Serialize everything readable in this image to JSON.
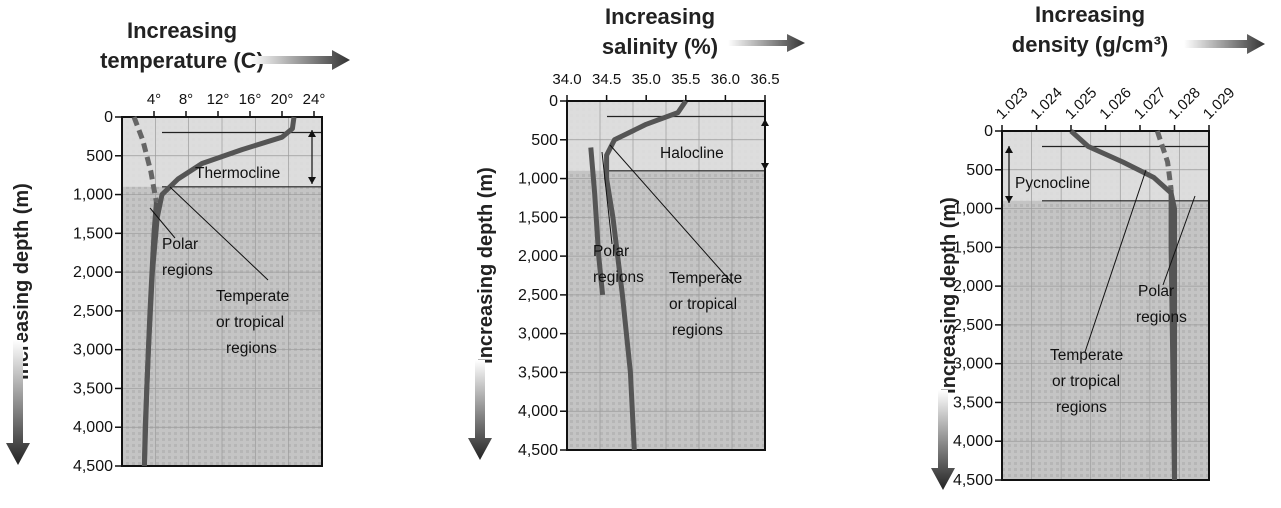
{
  "chart_data": [
    {
      "type": "line",
      "title_lines": [
        "Increasing",
        "temperature (C)"
      ],
      "ylabel": "Increasing depth (m)",
      "x_ticks": [
        "4°",
        "8°",
        "12°",
        "16°",
        "20°",
        "24°"
      ],
      "x_tick_values": [
        4,
        8,
        12,
        16,
        20,
        24
      ],
      "xlim": [
        0,
        25
      ],
      "y_ticks": [
        "0",
        "500",
        "1,000",
        "1,500",
        "2,000",
        "2,500",
        "3,000",
        "3,500",
        "4,000",
        "4,500"
      ],
      "y_tick_values": [
        0,
        500,
        1000,
        1500,
        2000,
        2500,
        3000,
        3500,
        4000,
        4500
      ],
      "ylim": [
        0,
        4500
      ],
      "layer_label": "Thermocline",
      "layer_range": [
        200,
        900
      ],
      "series": [
        {
          "key": "polar",
          "dashed_until": 1100,
          "points": [
            [
              1.5,
              0
            ],
            [
              2.6,
              300
            ],
            [
              3.6,
              700
            ],
            [
              4.3,
              1100
            ],
            [
              4.0,
              1500
            ],
            [
              3.5,
              2500
            ],
            [
              3.1,
              3500
            ],
            [
              2.8,
              4500
            ]
          ]
        },
        {
          "key": "temperate",
          "dashed_until": 0,
          "points": [
            [
              21.5,
              0
            ],
            [
              21.3,
              150
            ],
            [
              20.0,
              260
            ],
            [
              15.0,
              420
            ],
            [
              10.0,
              600
            ],
            [
              7.0,
              800
            ],
            [
              5.0,
              1000
            ],
            [
              4.4,
              1300
            ],
            [
              3.8,
              2000
            ],
            [
              3.3,
              3000
            ],
            [
              2.9,
              4000
            ],
            [
              2.8,
              4500
            ]
          ]
        }
      ],
      "labels": {
        "polar": "Polar regions",
        "temperate": "Temperate or tropical regions"
      }
    },
    {
      "type": "line",
      "title_lines": [
        "Increasing",
        "salinity (%)"
      ],
      "ylabel": "Increasing depth (m)",
      "x_ticks": [
        "34.0",
        "34.5",
        "35.0",
        "35.5",
        "36.0",
        "36.5"
      ],
      "x_tick_values": [
        34.0,
        34.5,
        35.0,
        35.5,
        36.0,
        36.5
      ],
      "xlim": [
        34.0,
        36.5
      ],
      "y_ticks": [
        "0",
        "500",
        "1,000",
        "1,500",
        "2,000",
        "2,500",
        "3,000",
        "3,500",
        "4,000",
        "4,500"
      ],
      "y_tick_values": [
        0,
        500,
        1000,
        1500,
        2000,
        2500,
        3000,
        3500,
        4000,
        4500
      ],
      "ylim": [
        0,
        4500
      ],
      "layer_label": "Halocline",
      "layer_range": [
        200,
        900
      ],
      "series": [
        {
          "key": "polar",
          "dashed_until": 500,
          "points": [
            [
              34.1,
              200
            ],
            [
              34.3,
              600
            ],
            [
              34.35,
              1200
            ],
            [
              34.4,
              2000
            ],
            [
              34.45,
              2500
            ]
          ]
        },
        {
          "key": "temperate",
          "dashed_until": 0,
          "points": [
            [
              35.5,
              0
            ],
            [
              35.4,
              150
            ],
            [
              35.0,
              300
            ],
            [
              34.6,
              500
            ],
            [
              34.5,
              700
            ],
            [
              34.5,
              1000
            ],
            [
              34.58,
              1500
            ],
            [
              34.7,
              2500
            ],
            [
              34.8,
              3500
            ],
            [
              34.85,
              4500
            ]
          ]
        }
      ],
      "labels": {
        "polar": "Polar regions",
        "temperate": "Temperate or tropical regions"
      }
    },
    {
      "type": "line",
      "title_lines": [
        "Increasing",
        "density (g/cm³)"
      ],
      "ylabel": "Increasing depth (m)",
      "x_ticks": [
        "1.023",
        "1.024",
        "1.025",
        "1.026",
        "1.027",
        "1.028",
        "1.029"
      ],
      "x_tick_values": [
        1.023,
        1.024,
        1.025,
        1.026,
        1.027,
        1.028,
        1.029
      ],
      "xlim": [
        1.023,
        1.029
      ],
      "y_ticks": [
        "0",
        "500",
        "1,000",
        "1,500",
        "2,000",
        "2,500",
        "3,000",
        "3,500",
        "4,000",
        "4,500"
      ],
      "y_tick_values": [
        0,
        500,
        1000,
        1500,
        2000,
        2500,
        3000,
        3500,
        4000,
        4500
      ],
      "ylim": [
        0,
        4500
      ],
      "layer_label": "Pycnocline",
      "layer_range": [
        200,
        900
      ],
      "series": [
        {
          "key": "polar",
          "dashed_until": 750,
          "points": [
            [
              1.0275,
              0
            ],
            [
              1.0278,
              400
            ],
            [
              1.0279,
              750
            ],
            [
              1.0279,
              1500
            ],
            [
              1.028,
              4500
            ]
          ]
        },
        {
          "key": "temperate",
          "dashed_until": 0,
          "points": [
            [
              1.025,
              0
            ],
            [
              1.0255,
              200
            ],
            [
              1.0265,
              400
            ],
            [
              1.0274,
              600
            ],
            [
              1.0279,
              800
            ],
            [
              1.028,
              1000
            ],
            [
              1.028,
              4500
            ]
          ]
        }
      ],
      "labels": {
        "polar": "Polar regions",
        "temperate": "Temperate or tropical regions"
      }
    }
  ]
}
